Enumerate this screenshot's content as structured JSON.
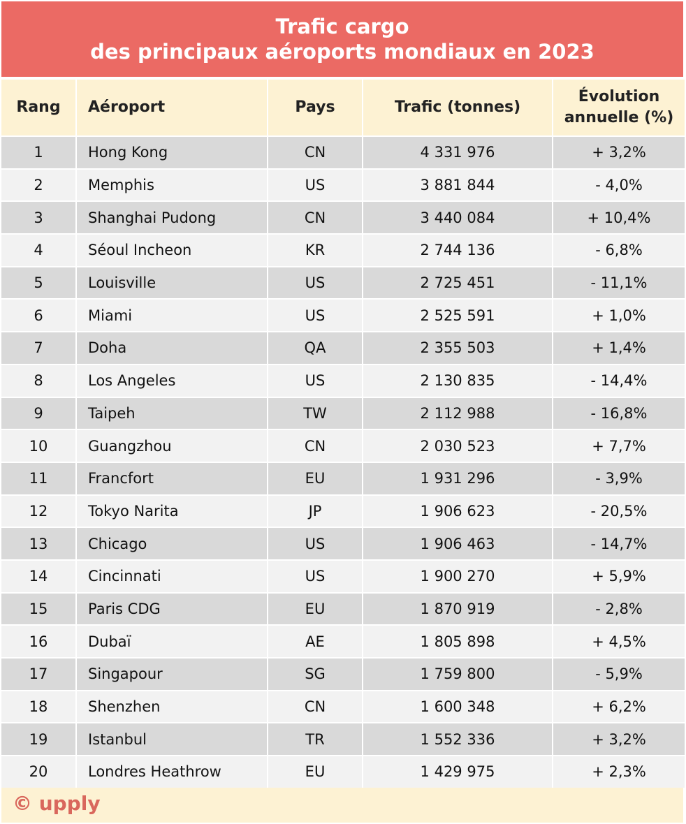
{
  "title": {
    "line1": "Trafic cargo",
    "line2": "des principaux aéroports mondiaux en 2023"
  },
  "colors": {
    "title_bg": "#EB6A64",
    "header_bg": "#FDF2D3",
    "row_dark": "#D9D9D9",
    "row_light": "#F2F2F2",
    "logo": "#D9675C"
  },
  "chart_data": {
    "type": "table",
    "columns": [
      "Rang",
      "Aéroport",
      "Pays",
      "Trafic (tonnes)",
      "Évolution annuelle (%)"
    ],
    "rows": [
      [
        "1",
        "Hong Kong",
        "CN",
        "4 331 976",
        "+ 3,2%"
      ],
      [
        "2",
        "Memphis",
        "US",
        "3 881 844",
        "- 4,0%"
      ],
      [
        "3",
        "Shanghai Pudong",
        "CN",
        "3 440 084",
        "+ 10,4%"
      ],
      [
        "4",
        "Séoul Incheon",
        "KR",
        "2 744 136",
        "- 6,8%"
      ],
      [
        "5",
        "Louisville",
        "US",
        "2 725 451",
        "- 11,1%"
      ],
      [
        "6",
        "Miami",
        "US",
        "2 525 591",
        "+ 1,0%"
      ],
      [
        "7",
        "Doha",
        "QA",
        "2 355 503",
        "+ 1,4%"
      ],
      [
        "8",
        "Los Angeles",
        "US",
        "2 130 835",
        "- 14,4%"
      ],
      [
        "9",
        "Taipeh",
        "TW",
        "2 112 988",
        "- 16,8%"
      ],
      [
        "10",
        "Guangzhou",
        "CN",
        "2 030 523",
        "+ 7,7%"
      ],
      [
        "11",
        "Francfort",
        "EU",
        "1 931 296",
        "- 3,9%"
      ],
      [
        "12",
        "Tokyo Narita",
        "JP",
        "1 906 623",
        "- 20,5%"
      ],
      [
        "13",
        "Chicago",
        "US",
        "1 906 463",
        "- 14,7%"
      ],
      [
        "14",
        "Cincinnati",
        "US",
        "1 900 270",
        "+ 5,9%"
      ],
      [
        "15",
        "Paris CDG",
        "EU",
        "1 870 919",
        "- 2,8%"
      ],
      [
        "16",
        "Dubaï",
        "AE",
        "1 805 898",
        "+ 4,5%"
      ],
      [
        "17",
        "Singapour",
        "SG",
        "1 759 800",
        "- 5,9%"
      ],
      [
        "18",
        "Shenzhen",
        "CN",
        "1 600 348",
        "+ 6,2%"
      ],
      [
        "19",
        "Istanbul",
        "TR",
        "1 552 336",
        "+ 3,2%"
      ],
      [
        "20",
        "Londres Heathrow",
        "EU",
        "1 429 975",
        "+ 2,3%"
      ]
    ]
  },
  "footer": {
    "logo": "© upply"
  }
}
